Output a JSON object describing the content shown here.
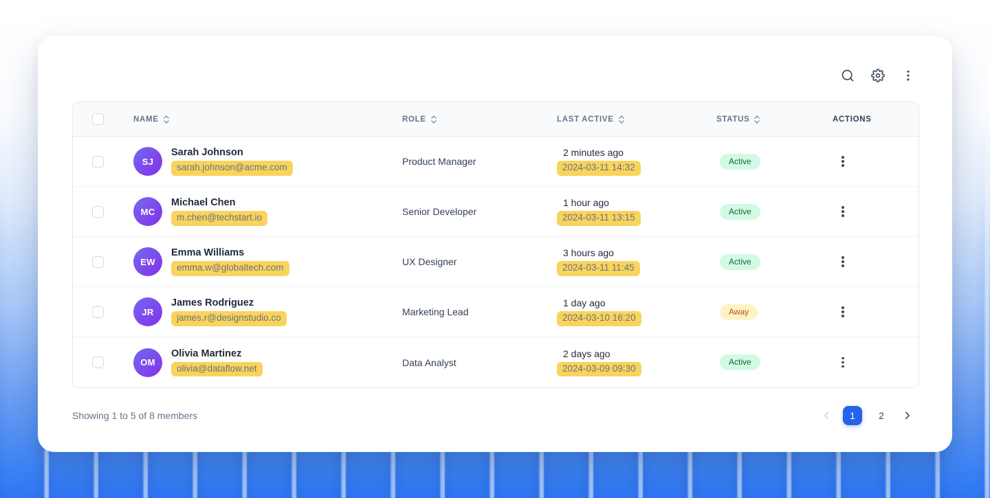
{
  "toolbar": {
    "icons": [
      {
        "name": "search"
      },
      {
        "name": "settings"
      },
      {
        "name": "more-vertical"
      }
    ]
  },
  "table": {
    "columns": [
      {
        "label": "NAME",
        "sortable": true
      },
      {
        "label": "ROLE",
        "sortable": true
      },
      {
        "label": "LAST ACTIVE",
        "sortable": true
      },
      {
        "label": "STATUS",
        "sortable": true
      },
      {
        "label": "ACTIONS",
        "sortable": false
      }
    ],
    "rows": [
      {
        "initials": "SJ",
        "name": "Sarah Johnson",
        "email": "sarah.johnson@acme.com",
        "role": "Product Manager",
        "last_active_relative": "2 minutes ago",
        "last_active_timestamp": "2024-03-11 14:32",
        "status": "Active"
      },
      {
        "initials": "MC",
        "name": "Michael Chen",
        "email": "m.chen@techstart.io",
        "role": "Senior Developer",
        "last_active_relative": "1 hour ago",
        "last_active_timestamp": "2024-03-11 13:15",
        "status": "Active"
      },
      {
        "initials": "EW",
        "name": "Emma Williams",
        "email": "emma.w@globaltech.com",
        "role": "UX Designer",
        "last_active_relative": "3 hours ago",
        "last_active_timestamp": "2024-03-11 11:45",
        "status": "Active"
      },
      {
        "initials": "JR",
        "name": "James Rodriguez",
        "email": "james.r@designstudio.co",
        "role": "Marketing Lead",
        "last_active_relative": "1 day ago",
        "last_active_timestamp": "2024-03-10 16:20",
        "status": "Away"
      },
      {
        "initials": "OM",
        "name": "Olivia Martinez",
        "email": "olivia@dataflow.net",
        "role": "Data Analyst",
        "last_active_relative": "2 days ago",
        "last_active_timestamp": "2024-03-09 09:30",
        "status": "Active"
      }
    ]
  },
  "footer": {
    "summary": "Showing 1 to 5 of 8 members",
    "pages": [
      {
        "label": "1",
        "active": true
      },
      {
        "label": "2",
        "active": false
      }
    ]
  },
  "colors": {
    "accent": "#2563eb",
    "highlight": "#f9d45c",
    "status_active_bg": "#d1fae5",
    "status_active_text": "#166534",
    "status_away_bg": "#fef3c7",
    "status_away_text": "#b45309",
    "avatar_gradient_start": "#7569f0",
    "avatar_gradient_end": "#8430e8",
    "background_bottom": "#2e77f4"
  }
}
